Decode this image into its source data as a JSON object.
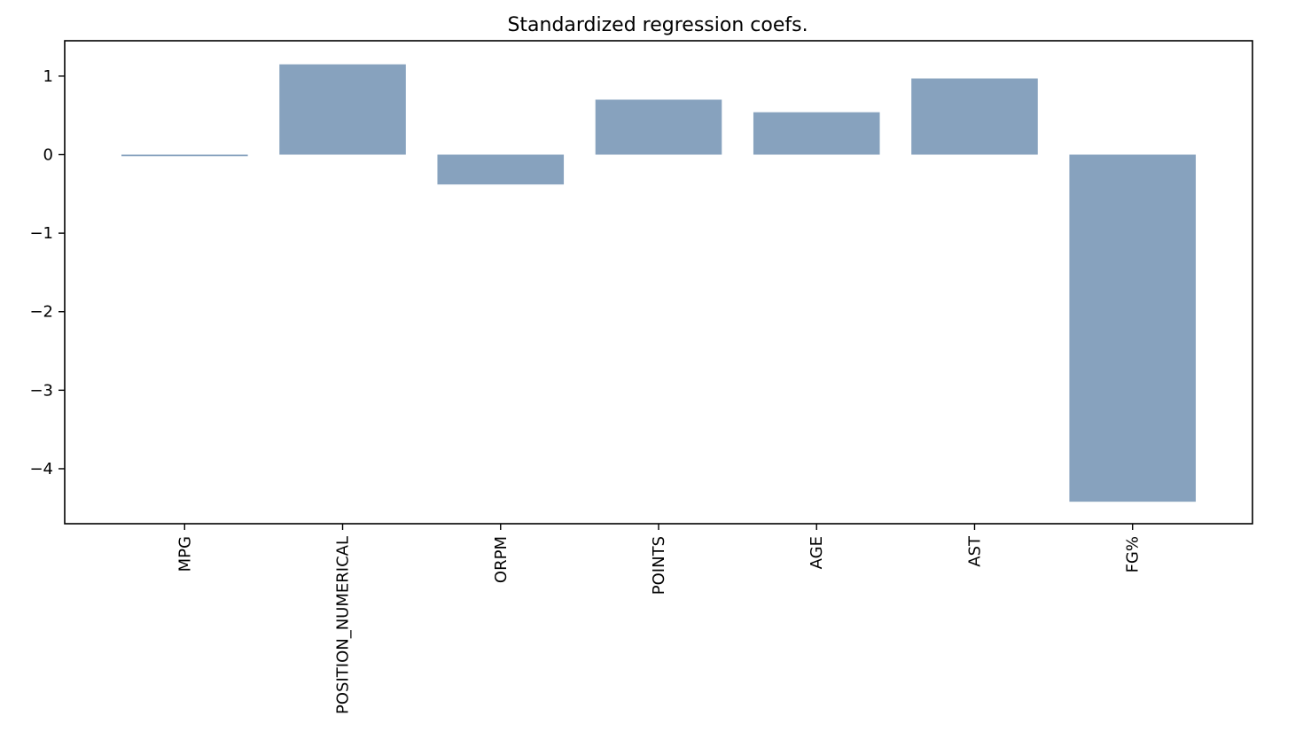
{
  "chart_data": {
    "type": "bar",
    "title": "Standardized regression coefs.",
    "xlabel": "",
    "ylabel": "",
    "categories": [
      "MPG",
      "POSITION_NUMERICAL",
      "ORPM",
      "POINTS",
      "AGE",
      "AST",
      "FG%"
    ],
    "values": [
      -0.02,
      1.15,
      -0.38,
      0.7,
      0.54,
      0.97,
      -4.42
    ],
    "ylim": [
      -4.7,
      1.45
    ],
    "yticks": [
      1,
      0,
      -1,
      -2,
      -3,
      -4
    ],
    "ytick_labels": [
      "1",
      "0",
      "−1",
      "−2",
      "−3",
      "−4"
    ],
    "bar_color": "#87a2be",
    "grid": false,
    "legend": "none"
  }
}
